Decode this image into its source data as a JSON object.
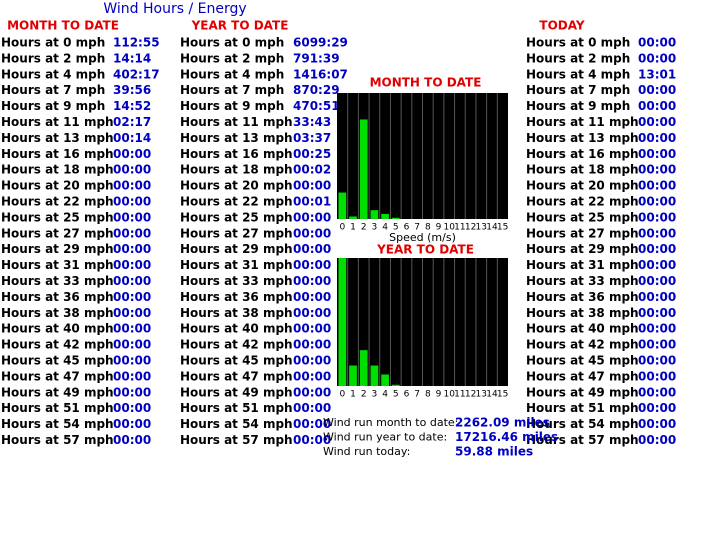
{
  "title": "Wind Hours / Energy",
  "tables": [
    {
      "heading": "MONTH TO DATE",
      "rows": [
        [
          "Hours at 0 mph",
          "112:55"
        ],
        [
          "Hours at 2 mph",
          "14:14"
        ],
        [
          "Hours at 4 mph",
          "402:17"
        ],
        [
          "Hours at 7 mph",
          "39:56"
        ],
        [
          "Hours at 9 mph",
          "14:52"
        ],
        [
          "Hours at 11 mph",
          "02:17"
        ],
        [
          "Hours at 13 mph",
          "00:14"
        ],
        [
          "Hours at 16 mph",
          "00:00"
        ],
        [
          "Hours at 18 mph",
          "00:00"
        ],
        [
          "Hours at 20 mph",
          "00:00"
        ],
        [
          "Hours at 22 mph",
          "00:00"
        ],
        [
          "Hours at 25 mph",
          "00:00"
        ],
        [
          "Hours at 27 mph",
          "00:00"
        ],
        [
          "Hours at 29 mph",
          "00:00"
        ],
        [
          "Hours at 31 mph",
          "00:00"
        ],
        [
          "Hours at 33 mph",
          "00:00"
        ],
        [
          "Hours at 36 mph",
          "00:00"
        ],
        [
          "Hours at 38 mph",
          "00:00"
        ],
        [
          "Hours at 40 mph",
          "00:00"
        ],
        [
          "Hours at 42 mph",
          "00:00"
        ],
        [
          "Hours at 45 mph",
          "00:00"
        ],
        [
          "Hours at 47 mph",
          "00:00"
        ],
        [
          "Hours at 49 mph",
          "00:00"
        ],
        [
          "Hours at 51 mph",
          "00:00"
        ],
        [
          "Hours at 54 mph",
          "00:00"
        ],
        [
          "Hours at 57 mph",
          "00:00"
        ]
      ]
    },
    {
      "heading": "YEAR TO DATE",
      "rows": [
        [
          "Hours at 0 mph",
          "6099:29"
        ],
        [
          "Hours at 2 mph",
          "791:39"
        ],
        [
          "Hours at 4 mph",
          "1416:07"
        ],
        [
          "Hours at 7 mph",
          "870:29"
        ],
        [
          "Hours at 9 mph",
          "470:51"
        ],
        [
          "Hours at 11 mph",
          "33:43"
        ],
        [
          "Hours at 13 mph",
          "03:37"
        ],
        [
          "Hours at 16 mph",
          "00:25"
        ],
        [
          "Hours at 18 mph",
          "00:02"
        ],
        [
          "Hours at 20 mph",
          "00:00"
        ],
        [
          "Hours at 22 mph",
          "00:01"
        ],
        [
          "Hours at 25 mph",
          "00:00"
        ],
        [
          "Hours at 27 mph",
          "00:00"
        ],
        [
          "Hours at 29 mph",
          "00:00"
        ],
        [
          "Hours at 31 mph",
          "00:00"
        ],
        [
          "Hours at 33 mph",
          "00:00"
        ],
        [
          "Hours at 36 mph",
          "00:00"
        ],
        [
          "Hours at 38 mph",
          "00:00"
        ],
        [
          "Hours at 40 mph",
          "00:00"
        ],
        [
          "Hours at 42 mph",
          "00:00"
        ],
        [
          "Hours at 45 mph",
          "00:00"
        ],
        [
          "Hours at 47 mph",
          "00:00"
        ],
        [
          "Hours at 49 mph",
          "00:00"
        ],
        [
          "Hours at 51 mph",
          "00:00"
        ],
        [
          "Hours at 54 mph",
          "00:00"
        ],
        [
          "Hours at 57 mph",
          "00:00"
        ]
      ]
    },
    {
      "heading": "TODAY",
      "rows": [
        [
          "Hours at 0 mph",
          "00:00"
        ],
        [
          "Hours at 2 mph",
          "00:00"
        ],
        [
          "Hours at 4 mph",
          "13:01"
        ],
        [
          "Hours at 7 mph",
          "00:00"
        ],
        [
          "Hours at 9 mph",
          "00:00"
        ],
        [
          "Hours at 11 mph",
          "00:00"
        ],
        [
          "Hours at 13 mph",
          "00:00"
        ],
        [
          "Hours at 16 mph",
          "00:00"
        ],
        [
          "Hours at 18 mph",
          "00:00"
        ],
        [
          "Hours at 20 mph",
          "00:00"
        ],
        [
          "Hours at 22 mph",
          "00:00"
        ],
        [
          "Hours at 25 mph",
          "00:00"
        ],
        [
          "Hours at 27 mph",
          "00:00"
        ],
        [
          "Hours at 29 mph",
          "00:00"
        ],
        [
          "Hours at 31 mph",
          "00:00"
        ],
        [
          "Hours at 33 mph",
          "00:00"
        ],
        [
          "Hours at 36 mph",
          "00:00"
        ],
        [
          "Hours at 38 mph",
          "00:00"
        ],
        [
          "Hours at 40 mph",
          "00:00"
        ],
        [
          "Hours at 42 mph",
          "00:00"
        ],
        [
          "Hours at 45 mph",
          "00:00"
        ],
        [
          "Hours at 47 mph",
          "00:00"
        ],
        [
          "Hours at 49 mph",
          "00:00"
        ],
        [
          "Hours at 51 mph",
          "00:00"
        ],
        [
          "Hours at 54 mph",
          "00:00"
        ],
        [
          "Hours at 57 mph",
          "00:00"
        ]
      ]
    }
  ],
  "chart_data": [
    {
      "type": "bar",
      "title": "MONTH TO DATE",
      "xlabel": "Speed (m/s)",
      "categories": [
        "0",
        "1",
        "2",
        "3",
        "4",
        "5",
        "6",
        "7",
        "8",
        "9",
        "10",
        "11",
        "12",
        "13",
        "14",
        "15"
      ],
      "values": [
        21,
        2,
        79,
        7,
        4,
        1,
        0,
        0,
        0,
        0,
        0,
        0,
        0,
        0,
        0,
        0
      ],
      "color": "#00e000",
      "ylim": [
        0,
        100
      ]
    },
    {
      "type": "bar",
      "title": "YEAR TO DATE",
      "categories": [
        "0",
        "1",
        "2",
        "3",
        "4",
        "5",
        "6",
        "7",
        "8",
        "9",
        "10",
        "11",
        "12",
        "13",
        "14",
        "15"
      ],
      "values": [
        100,
        16,
        28,
        16,
        9,
        1,
        0,
        0,
        0,
        0,
        0,
        0,
        0,
        0,
        0,
        0
      ],
      "color": "#00e000",
      "ylim": [
        0,
        100
      ]
    }
  ],
  "wind_run": [
    [
      "Wind run month to date:",
      "2262.09 miles"
    ],
    [
      "Wind run year to date:",
      "17216.46 miles"
    ],
    [
      "Wind run today:",
      "59.88 miles"
    ]
  ]
}
